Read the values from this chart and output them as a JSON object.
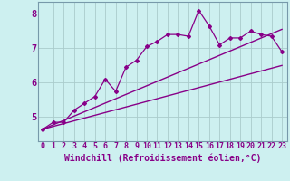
{
  "xlabel": "Windchill (Refroidissement éolien,°C)",
  "background_color": "#cdf0f0",
  "line_color": "#880088",
  "grid_color": "#aacccc",
  "spine_color": "#7799aa",
  "xlim": [
    -0.5,
    23.5
  ],
  "ylim": [
    4.3,
    8.35
  ],
  "yticks": [
    5,
    6,
    7,
    8
  ],
  "xticks": [
    0,
    1,
    2,
    3,
    4,
    5,
    6,
    7,
    8,
    9,
    10,
    11,
    12,
    13,
    14,
    15,
    16,
    17,
    18,
    19,
    20,
    21,
    22,
    23
  ],
  "series1_x": [
    0,
    1,
    2,
    3,
    4,
    5,
    6,
    7,
    8,
    9,
    10,
    11,
    12,
    13,
    14,
    15,
    16,
    17,
    18,
    19,
    20,
    21,
    22,
    23
  ],
  "series1_y": [
    4.65,
    4.85,
    4.85,
    5.2,
    5.4,
    5.6,
    6.1,
    5.75,
    6.45,
    6.65,
    7.05,
    7.2,
    7.4,
    7.4,
    7.35,
    8.1,
    7.65,
    7.1,
    7.3,
    7.3,
    7.5,
    7.4,
    7.35,
    6.9
  ],
  "series2_x": [
    0,
    23
  ],
  "series2_y": [
    4.65,
    6.5
  ],
  "series3_x": [
    0,
    23
  ],
  "series3_y": [
    4.65,
    7.55
  ],
  "font_size_xlabel": 7,
  "font_size_yticks": 7.5,
  "font_size_xticks": 6.0,
  "marker": "D",
  "marker_size": 2.0
}
